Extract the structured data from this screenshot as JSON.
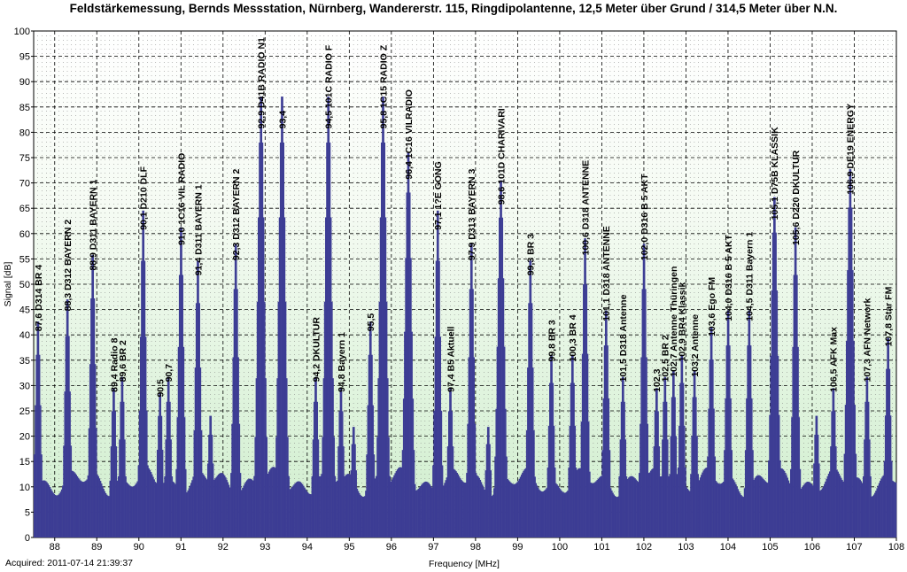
{
  "chart_data": {
    "type": "bar",
    "title": "Feldstärkemessung, Bernds Messstation, Nürnberg, Wandererstr. 115, Ringdipolantenne, 12,5 Meter über Grund / 314,5 Meter über N.N.",
    "xlabel": "Frequency [MHz]",
    "ylabel": "Signal [dB]",
    "footer": "Acquired: 2011-07-14 21:39:37",
    "xlim": [
      87.5,
      108
    ],
    "ylim": [
      0,
      100
    ],
    "x_ticks": [
      "88",
      "89",
      "90",
      "91",
      "92",
      "93",
      "94",
      "95",
      "96",
      "97",
      "98",
      "99",
      "100",
      "101",
      "102",
      "103",
      "104",
      "105",
      "106",
      "107",
      "108"
    ],
    "y_ticks": [
      "0",
      "5",
      "10",
      "15",
      "20",
      "25",
      "30",
      "35",
      "40",
      "45",
      "50",
      "55",
      "60",
      "65",
      "70",
      "75",
      "80",
      "85",
      "90",
      "95",
      "100"
    ],
    "grid": true,
    "bar_color": "#3d3d94",
    "peaks": [
      {
        "f": 87.6,
        "v": 40
      },
      {
        "f": 88.3,
        "v": 44
      },
      {
        "f": 88.9,
        "v": 52
      },
      {
        "f": 89.4,
        "v": 28
      },
      {
        "f": 89.6,
        "v": 30
      },
      {
        "f": 90.1,
        "v": 60
      },
      {
        "f": 90.5,
        "v": 27
      },
      {
        "f": 90.7,
        "v": 30
      },
      {
        "f": 91.0,
        "v": 57
      },
      {
        "f": 91.4,
        "v": 51
      },
      {
        "f": 91.7,
        "v": 23
      },
      {
        "f": 92.3,
        "v": 54
      },
      {
        "f": 92.9,
        "v": 80
      },
      {
        "f": 93.4,
        "v": 80
      },
      {
        "f": 94.2,
        "v": 30
      },
      {
        "f": 94.5,
        "v": 80
      },
      {
        "f": 94.8,
        "v": 28
      },
      {
        "f": 95.1,
        "v": 21
      },
      {
        "f": 95.5,
        "v": 40
      },
      {
        "f": 95.8,
        "v": 80
      },
      {
        "f": 96.4,
        "v": 70
      },
      {
        "f": 97.1,
        "v": 60
      },
      {
        "f": 97.4,
        "v": 28
      },
      {
        "f": 97.9,
        "v": 54
      },
      {
        "f": 98.3,
        "v": 21
      },
      {
        "f": 98.6,
        "v": 65
      },
      {
        "f": 99.3,
        "v": 51
      },
      {
        "f": 99.8,
        "v": 34
      },
      {
        "f": 100.3,
        "v": 34
      },
      {
        "f": 100.6,
        "v": 55
      },
      {
        "f": 101.1,
        "v": 42
      },
      {
        "f": 101.5,
        "v": 30
      },
      {
        "f": 102.0,
        "v": 54
      },
      {
        "f": 102.3,
        "v": 28
      },
      {
        "f": 102.5,
        "v": 30
      },
      {
        "f": 102.7,
        "v": 31
      },
      {
        "f": 102.9,
        "v": 34
      },
      {
        "f": 103.2,
        "v": 31
      },
      {
        "f": 103.6,
        "v": 39
      },
      {
        "f": 104.0,
        "v": 42
      },
      {
        "f": 104.5,
        "v": 42
      },
      {
        "f": 105.1,
        "v": 62
      },
      {
        "f": 105.6,
        "v": 57
      },
      {
        "f": 106.1,
        "v": 23
      },
      {
        "f": 106.5,
        "v": 28
      },
      {
        "f": 106.9,
        "v": 67
      },
      {
        "f": 107.3,
        "v": 30
      },
      {
        "f": 107.8,
        "v": 37
      }
    ],
    "annotations": [
      {
        "f": 87.6,
        "text": "87,6  D314 BR 4"
      },
      {
        "f": 88.3,
        "text": "88,3   D312  BAYERN 2"
      },
      {
        "f": 88.9,
        "text": "88,9   D311  BAYERN 1"
      },
      {
        "f": 89.4,
        "text": "89,4  Radio 8"
      },
      {
        "f": 89.6,
        "text": "89,6  BR 2"
      },
      {
        "f": 90.1,
        "text": "90,1   D210   DLF"
      },
      {
        "f": 90.5,
        "text": "90,5"
      },
      {
        "f": 90.7,
        "text": "90,7"
      },
      {
        "f": 91.0,
        "text": "91,0   1C16  VIL RADIO"
      },
      {
        "f": 91.4,
        "text": "91,4   D311  BAYERN 1"
      },
      {
        "f": 92.3,
        "text": "92,3   D312  BAYERN 2"
      },
      {
        "f": 92.9,
        "text": "92,9   D41B  RADIO N1"
      },
      {
        "f": 93.4,
        "text": "93,4"
      },
      {
        "f": 94.2,
        "text": "94,2  DKULTUR"
      },
      {
        "f": 94.5,
        "text": "94,5   101C  RADIO F"
      },
      {
        "f": 94.8,
        "text": "94,8  Bayern 1"
      },
      {
        "f": 95.5,
        "text": "95,5"
      },
      {
        "f": 95.8,
        "text": "95,8   1C15  RADIO Z"
      },
      {
        "f": 96.4,
        "text": "96,4   1C16  VILRADIO"
      },
      {
        "f": 97.1,
        "text": "97,1   1?E   GONG"
      },
      {
        "f": 97.4,
        "text": "97,4  B5 Aktuell"
      },
      {
        "f": 97.9,
        "text": "97,9   D313  BAYERN 3"
      },
      {
        "f": 98.6,
        "text": "98,6   101D  CHARIVARI"
      },
      {
        "f": 99.3,
        "text": "99,3  BR 3"
      },
      {
        "f": 99.8,
        "text": "99,8  BR 3"
      },
      {
        "f": 100.3,
        "text": "100,3  BR 4"
      },
      {
        "f": 100.6,
        "text": "100,6   D318   ANTENNE"
      },
      {
        "f": 101.1,
        "text": "101,1   D318   ANTENNE"
      },
      {
        "f": 101.5,
        "text": "101,5   D318  Antenne"
      },
      {
        "f": 102.0,
        "text": "102,0   D316  B 5 AKT"
      },
      {
        "f": 102.3,
        "text": "102,3"
      },
      {
        "f": 102.5,
        "text": "102,5  BR 2"
      },
      {
        "f": 102.7,
        "text": "102,7  Antenne Thüringen"
      },
      {
        "f": 102.9,
        "text": "102,9  BR4 Klassik"
      },
      {
        "f": 103.2,
        "text": "103,2  Antenne"
      },
      {
        "f": 103.6,
        "text": "103,6  Ego FM"
      },
      {
        "f": 104.0,
        "text": "104,0   D316  B 5 AKT"
      },
      {
        "f": 104.5,
        "text": "104,5   D311  Bayern 1"
      },
      {
        "f": 105.1,
        "text": "105,1   D75B  KLASSIK"
      },
      {
        "f": 105.6,
        "text": "105,6   D220  DKULTUR"
      },
      {
        "f": 106.5,
        "text": "106,5  AFK Max"
      },
      {
        "f": 106.9,
        "text": "106,9   DE19   ENERGY"
      },
      {
        "f": 107.3,
        "text": "107,3   AFN Network"
      },
      {
        "f": 107.8,
        "text": "107,8   Star FM"
      }
    ]
  }
}
